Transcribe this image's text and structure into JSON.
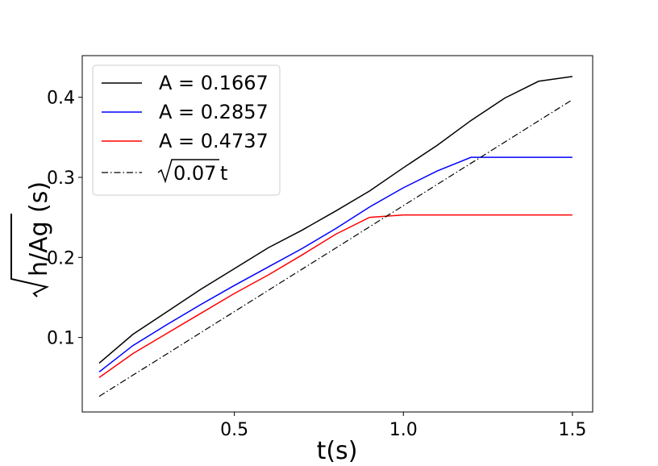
{
  "chart_data": {
    "type": "line",
    "title": "",
    "xlabel": "t(s)",
    "ylabel_radicand": "h/Ag",
    "ylabel_suffix": "(s)",
    "xlim": [
      0.05,
      1.56
    ],
    "ylim": [
      0.007,
      0.452
    ],
    "xticks": [
      0.5,
      1.0,
      1.5
    ],
    "xtick_labels": [
      "0.5",
      "1.0",
      "1.5"
    ],
    "yticks": [
      0.1,
      0.2,
      0.3,
      0.4
    ],
    "ytick_labels": [
      "0.1",
      "0.2",
      "0.3",
      "0.4"
    ],
    "grid": false,
    "legend_position": "top-left",
    "series": [
      {
        "name": "A = 0.1667",
        "color": "#000000",
        "style": "solid",
        "x": [
          0.1,
          0.2,
          0.3,
          0.4,
          0.5,
          0.6,
          0.7,
          0.8,
          0.9,
          1.0,
          1.1,
          1.2,
          1.3,
          1.4,
          1.5
        ],
        "y": [
          0.068,
          0.104,
          0.132,
          0.16,
          0.186,
          0.212,
          0.234,
          0.258,
          0.283,
          0.312,
          0.34,
          0.371,
          0.399,
          0.42,
          0.426
        ]
      },
      {
        "name": "A = 0.2857",
        "color": "#0000ff",
        "style": "solid",
        "x": [
          0.1,
          0.2,
          0.3,
          0.4,
          0.5,
          0.6,
          0.7,
          0.8,
          0.9,
          1.0,
          1.1,
          1.2,
          1.3,
          1.4,
          1.5
        ],
        "y": [
          0.057,
          0.09,
          0.116,
          0.141,
          0.165,
          0.188,
          0.211,
          0.236,
          0.263,
          0.287,
          0.308,
          0.325,
          0.325,
          0.325,
          0.325
        ]
      },
      {
        "name": "A = 0.4737",
        "color": "#ff0000",
        "style": "solid",
        "x": [
          0.1,
          0.2,
          0.3,
          0.4,
          0.5,
          0.6,
          0.7,
          0.8,
          0.9,
          1.0,
          1.1,
          1.2,
          1.3,
          1.4,
          1.5
        ],
        "y": [
          0.05,
          0.08,
          0.105,
          0.13,
          0.155,
          0.178,
          0.203,
          0.229,
          0.25,
          0.253,
          0.253,
          0.253,
          0.253,
          0.253,
          0.253
        ]
      },
      {
        "name_radicand": "0.07",
        "name_suffix": "t",
        "color": "#000000",
        "style": "dashdot",
        "x": [
          0.1,
          1.5
        ],
        "y": [
          0.0265,
          0.397
        ]
      }
    ]
  }
}
